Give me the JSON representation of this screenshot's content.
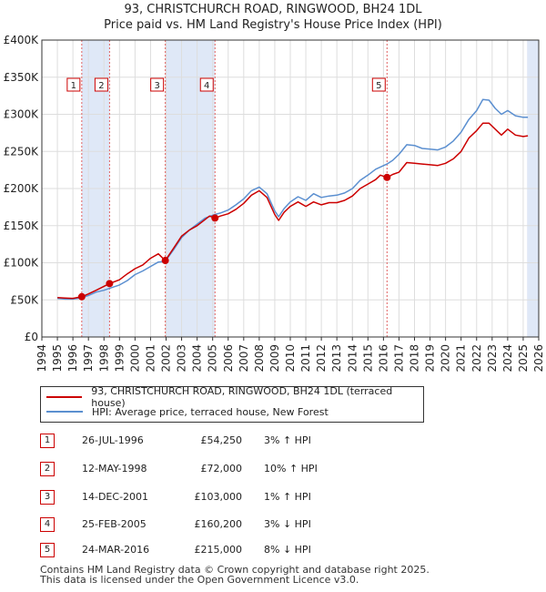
{
  "header": {
    "title_line1": "93, CHRISTCHURCH ROAD, RINGWOOD, BH24 1DL",
    "title_line2": "Price paid vs. HM Land Registry's House Price Index (HPI)"
  },
  "colors": {
    "property": "#cc0000",
    "hpi": "#5b8fd0",
    "band": "#dfe8f7",
    "grid": "#dddddd",
    "sale_line": "#e06060"
  },
  "chart_data": {
    "type": "line",
    "title": "93, CHRISTCHURCH ROAD, RINGWOOD, BH24 1DL - Price paid vs. HM Land Registry's House Price Index (HPI)",
    "xlim": [
      1994,
      2026
    ],
    "ylim": [
      0,
      400000
    ],
    "x_ticks": [
      "1994",
      "1995",
      "1996",
      "1997",
      "1998",
      "1999",
      "2000",
      "2001",
      "2002",
      "2003",
      "2004",
      "2005",
      "2006",
      "2007",
      "2008",
      "2009",
      "2010",
      "2011",
      "2012",
      "2013",
      "2014",
      "2015",
      "2016",
      "2017",
      "2018",
      "2019",
      "2020",
      "2021",
      "2022",
      "2023",
      "2024",
      "2025",
      "2026"
    ],
    "y_ticks": [
      {
        "v": 0,
        "label": "£0"
      },
      {
        "v": 50000,
        "label": "£50K"
      },
      {
        "v": 100000,
        "label": "£100K"
      },
      {
        "v": 150000,
        "label": "£150K"
      },
      {
        "v": 200000,
        "label": "£200K"
      },
      {
        "v": 250000,
        "label": "£250K"
      },
      {
        "v": 300000,
        "label": "£300K"
      },
      {
        "v": 350000,
        "label": "£350K"
      },
      {
        "v": 400000,
        "label": "£400K"
      }
    ],
    "series": [
      {
        "name": "93, CHRISTCHURCH ROAD, RINGWOOD, BH24 1DL (terraced house)",
        "color": "#cc0000",
        "points": [
          [
            1995,
            53000
          ],
          [
            1995.5,
            52500
          ],
          [
            1996,
            52000
          ],
          [
            1996.57,
            54250
          ],
          [
            1997,
            58000
          ],
          [
            1997.5,
            63000
          ],
          [
            1998.36,
            72000
          ],
          [
            1999,
            77000
          ],
          [
            1999.5,
            85000
          ],
          [
            2000,
            92000
          ],
          [
            2000.5,
            97000
          ],
          [
            2001,
            106000
          ],
          [
            2001.5,
            112000
          ],
          [
            2001.95,
            103000
          ],
          [
            2002.5,
            120000
          ],
          [
            2003,
            136000
          ],
          [
            2003.5,
            144000
          ],
          [
            2004,
            150000
          ],
          [
            2004.5,
            158000
          ],
          [
            2004.8,
            163000
          ],
          [
            2005.15,
            160200
          ],
          [
            2005.5,
            163000
          ],
          [
            2006,
            166000
          ],
          [
            2006.5,
            172000
          ],
          [
            2007,
            180000
          ],
          [
            2007.5,
            191000
          ],
          [
            2008,
            197000
          ],
          [
            2008.5,
            188000
          ],
          [
            2009,
            165000
          ],
          [
            2009.25,
            157000
          ],
          [
            2009.6,
            168000
          ],
          [
            2010,
            176000
          ],
          [
            2010.5,
            182000
          ],
          [
            2011,
            176000
          ],
          [
            2011.5,
            182000
          ],
          [
            2012,
            178000
          ],
          [
            2012.5,
            181000
          ],
          [
            2013,
            181000
          ],
          [
            2013.5,
            184000
          ],
          [
            2014,
            190000
          ],
          [
            2014.5,
            200000
          ],
          [
            2015,
            206000
          ],
          [
            2015.5,
            212000
          ],
          [
            2015.8,
            218000
          ],
          [
            2016.23,
            215000
          ],
          [
            2016.6,
            219000
          ],
          [
            2017,
            222000
          ],
          [
            2017.5,
            235000
          ],
          [
            2018,
            234000
          ],
          [
            2018.5,
            233000
          ],
          [
            2019,
            232000
          ],
          [
            2019.5,
            231000
          ],
          [
            2020,
            234000
          ],
          [
            2020.5,
            240000
          ],
          [
            2021,
            250000
          ],
          [
            2021.5,
            268000
          ],
          [
            2022,
            278000
          ],
          [
            2022.4,
            288000
          ],
          [
            2022.8,
            288000
          ],
          [
            2023.2,
            280000
          ],
          [
            2023.6,
            272000
          ],
          [
            2024,
            280000
          ],
          [
            2024.5,
            272000
          ],
          [
            2025,
            270000
          ],
          [
            2025.3,
            271000
          ]
        ]
      },
      {
        "name": "HPI: Average price, terraced house, New Forest",
        "color": "#5b8fd0",
        "points": [
          [
            1995,
            52000
          ],
          [
            1995.5,
            51000
          ],
          [
            1996,
            51000
          ],
          [
            1996.57,
            52700
          ],
          [
            1997,
            56000
          ],
          [
            1997.5,
            60500
          ],
          [
            1998,
            63000
          ],
          [
            1998.36,
            65500
          ],
          [
            1999,
            70000
          ],
          [
            1999.5,
            76000
          ],
          [
            2000,
            84000
          ],
          [
            2000.5,
            89000
          ],
          [
            2001,
            95000
          ],
          [
            2001.5,
            101000
          ],
          [
            2001.95,
            102000
          ],
          [
            2002.5,
            118000
          ],
          [
            2003,
            134000
          ],
          [
            2003.5,
            144000
          ],
          [
            2004,
            152000
          ],
          [
            2004.5,
            160000
          ],
          [
            2005.15,
            165000
          ],
          [
            2005.5,
            167000
          ],
          [
            2006,
            171000
          ],
          [
            2006.5,
            178000
          ],
          [
            2007,
            186000
          ],
          [
            2007.5,
            197000
          ],
          [
            2008,
            202000
          ],
          [
            2008.5,
            193000
          ],
          [
            2009,
            170000
          ],
          [
            2009.25,
            162000
          ],
          [
            2009.6,
            173000
          ],
          [
            2010,
            182000
          ],
          [
            2010.5,
            189000
          ],
          [
            2011,
            184000
          ],
          [
            2011.5,
            193000
          ],
          [
            2012,
            188000
          ],
          [
            2012.5,
            190000
          ],
          [
            2013,
            191000
          ],
          [
            2013.5,
            194000
          ],
          [
            2014,
            200000
          ],
          [
            2014.5,
            211000
          ],
          [
            2015,
            218000
          ],
          [
            2015.5,
            226000
          ],
          [
            2016.23,
            233000
          ],
          [
            2016.6,
            238000
          ],
          [
            2017,
            246000
          ],
          [
            2017.5,
            259000
          ],
          [
            2018,
            258000
          ],
          [
            2018.5,
            254000
          ],
          [
            2019,
            253000
          ],
          [
            2019.5,
            252000
          ],
          [
            2020,
            256000
          ],
          [
            2020.5,
            264000
          ],
          [
            2021,
            276000
          ],
          [
            2021.5,
            293000
          ],
          [
            2022,
            305000
          ],
          [
            2022.4,
            320000
          ],
          [
            2022.8,
            319000
          ],
          [
            2023.2,
            308000
          ],
          [
            2023.6,
            300000
          ],
          [
            2024,
            305000
          ],
          [
            2024.5,
            298000
          ],
          [
            2025,
            296000
          ],
          [
            2025.3,
            296000
          ]
        ]
      }
    ],
    "sales": [
      {
        "n": "1",
        "x": 1996.57,
        "price": 54250
      },
      {
        "n": "2",
        "x": 1998.36,
        "price": 72000
      },
      {
        "n": "3",
        "x": 2001.95,
        "price": 103000
      },
      {
        "n": "4",
        "x": 2005.15,
        "price": 160200
      },
      {
        "n": "5",
        "x": 2016.23,
        "price": 215000
      }
    ],
    "shaded_bands": [
      [
        1996.57,
        1998.36
      ],
      [
        2001.95,
        2005.15
      ],
      [
        2025.25,
        2026
      ]
    ]
  },
  "legend": {
    "property_label": "93, CHRISTCHURCH ROAD, RINGWOOD, BH24 1DL (terraced house)",
    "hpi_label": "HPI: Average price, terraced house, New Forest"
  },
  "sales_table": [
    {
      "num": "1",
      "date": "26-JUL-1996",
      "price": "£54,250",
      "hpi": "3% ↑ HPI"
    },
    {
      "num": "2",
      "date": "12-MAY-1998",
      "price": "£72,000",
      "hpi": "10% ↑ HPI"
    },
    {
      "num": "3",
      "date": "14-DEC-2001",
      "price": "£103,000",
      "hpi": "1% ↑ HPI"
    },
    {
      "num": "4",
      "date": "25-FEB-2005",
      "price": "£160,200",
      "hpi": "3% ↓ HPI"
    },
    {
      "num": "5",
      "date": "24-MAR-2016",
      "price": "£215,000",
      "hpi": "8% ↓ HPI"
    }
  ],
  "footer": {
    "line1": "Contains HM Land Registry data © Crown copyright and database right 2025.",
    "line2": "This data is licensed under the Open Government Licence v3.0."
  }
}
